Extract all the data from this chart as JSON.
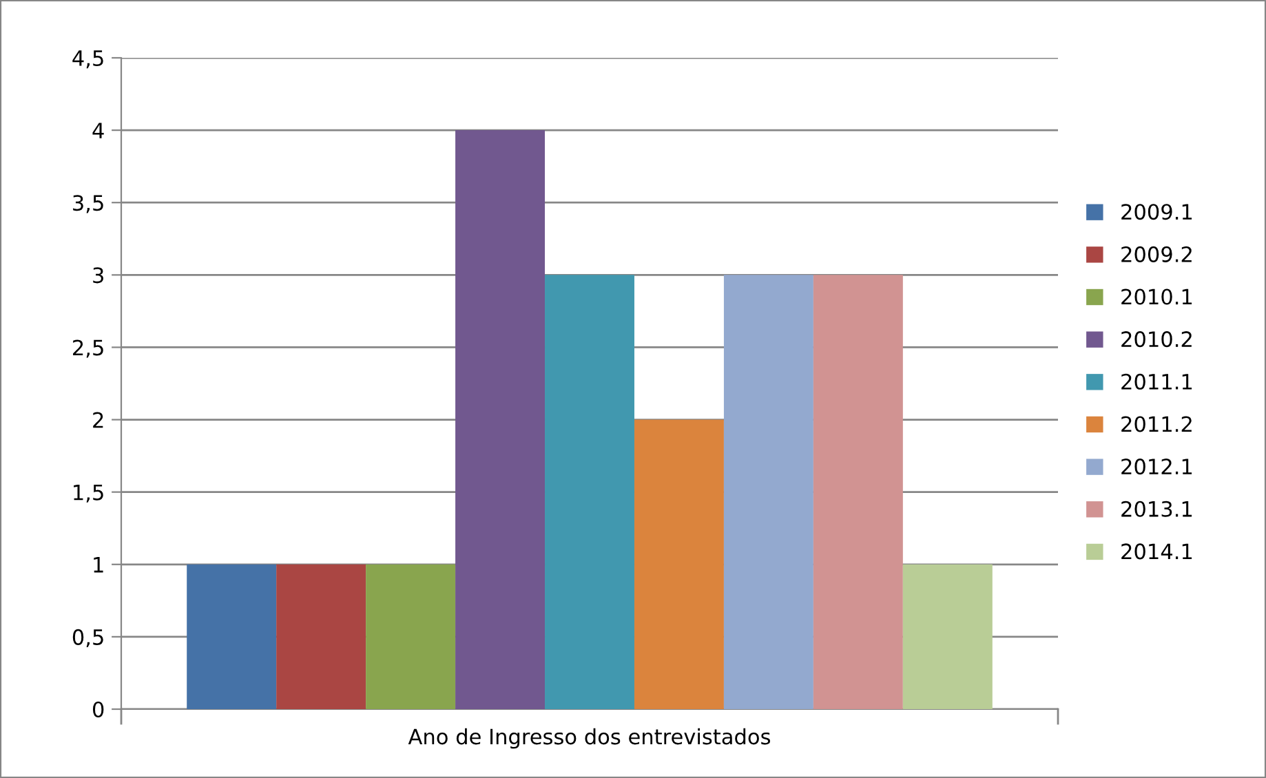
{
  "chart_data": {
    "type": "bar",
    "categories": [
      "Ano de Ingresso dos entrevistados"
    ],
    "series": [
      {
        "name": "2009.1",
        "color": "#4572a7",
        "values": [
          1
        ]
      },
      {
        "name": "2009.2",
        "color": "#aa4643",
        "values": [
          1
        ]
      },
      {
        "name": "2010.1",
        "color": "#89a54e",
        "values": [
          1
        ]
      },
      {
        "name": "2010.2",
        "color": "#71588f",
        "values": [
          4
        ]
      },
      {
        "name": "2011.1",
        "color": "#4198af",
        "values": [
          3
        ]
      },
      {
        "name": "2011.2",
        "color": "#db843d",
        "values": [
          2
        ]
      },
      {
        "name": "2012.1",
        "color": "#93a9cf",
        "values": [
          3
        ]
      },
      {
        "name": "2013.1",
        "color": "#d19392",
        "values": [
          3
        ]
      },
      {
        "name": "2014.1",
        "color": "#b9cd96",
        "values": [
          1
        ]
      }
    ],
    "ylim": [
      0,
      4.5
    ],
    "yticks": [
      0,
      {
        "value": 0.5,
        "label": "0,5"
      },
      1,
      {
        "value": 1.5,
        "label": "1,5"
      },
      2,
      {
        "value": 2.5,
        "label": "2,5"
      },
      3,
      {
        "value": 3.5,
        "label": "3,5"
      },
      4,
      {
        "value": 4.5,
        "label": "4,5"
      }
    ],
    "grid": "y",
    "legend": "right"
  }
}
